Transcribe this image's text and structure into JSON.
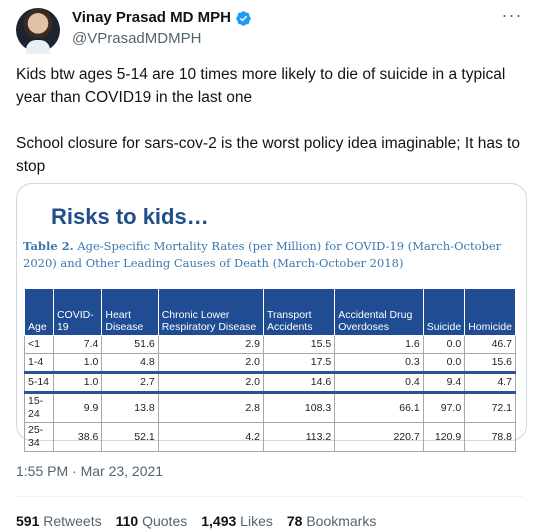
{
  "author": {
    "display_name": "Vinay Prasad MD MPH",
    "handle": "@VPrasadMDMPH"
  },
  "tweet": {
    "paragraph1": "Kids btw ages 5-14 are 10 times more likely to die of suicide in a typical year than COVID19 in the last one",
    "paragraph2": "School closure for sars-cov-2 is the worst policy idea imaginable;  It has to stop"
  },
  "media": {
    "slide_title": "Risks to kids…",
    "table_label": "Table 2.",
    "table_caption": "Age-Specific Mortality Rates (per Million) for COVID-19 (March-October 2020) and Other Leading Causes of Death (March-October 2018)",
    "headers": [
      "Age",
      "COVID-19",
      "Heart Disease",
      "Chronic Lower Respiratory Disease",
      "Transport Accidents",
      "Accidental Drug Overdoses",
      "Suicide",
      "Homicide"
    ],
    "rows": [
      [
        "<1",
        "7.4",
        "51.6",
        "2.9",
        "15.5",
        "1.6",
        "0.0",
        "46.7"
      ],
      [
        "1-4",
        "1.0",
        "4.8",
        "2.0",
        "17.5",
        "0.3",
        "0.0",
        "15.6"
      ],
      [
        "5-14",
        "1.0",
        "2.7",
        "2.0",
        "14.6",
        "0.4",
        "9.4",
        "4.7"
      ],
      [
        "15-24",
        "9.9",
        "13.8",
        "2.8",
        "108.3",
        "66.1",
        "97.0",
        "72.1"
      ],
      [
        "25-34",
        "38.6",
        "52.1",
        "4.2",
        "113.2",
        "220.7",
        "120.9",
        "78.8"
      ]
    ],
    "highlight_row_age": "5-14"
  },
  "timestamp": "1:55 PM · Mar 23, 2021",
  "stats": {
    "retweets_count": "591",
    "retweets_label": "Retweets",
    "quotes_count": "110",
    "quotes_label": "Quotes",
    "likes_count": "1,493",
    "likes_label": "Likes",
    "bookmarks_count": "78",
    "bookmarks_label": "Bookmarks"
  },
  "colors": {
    "verified": "#1d9bf0",
    "slide_title": "#1f4e8c",
    "table_header": "#1f4c92",
    "caption": "#3b78b0"
  }
}
